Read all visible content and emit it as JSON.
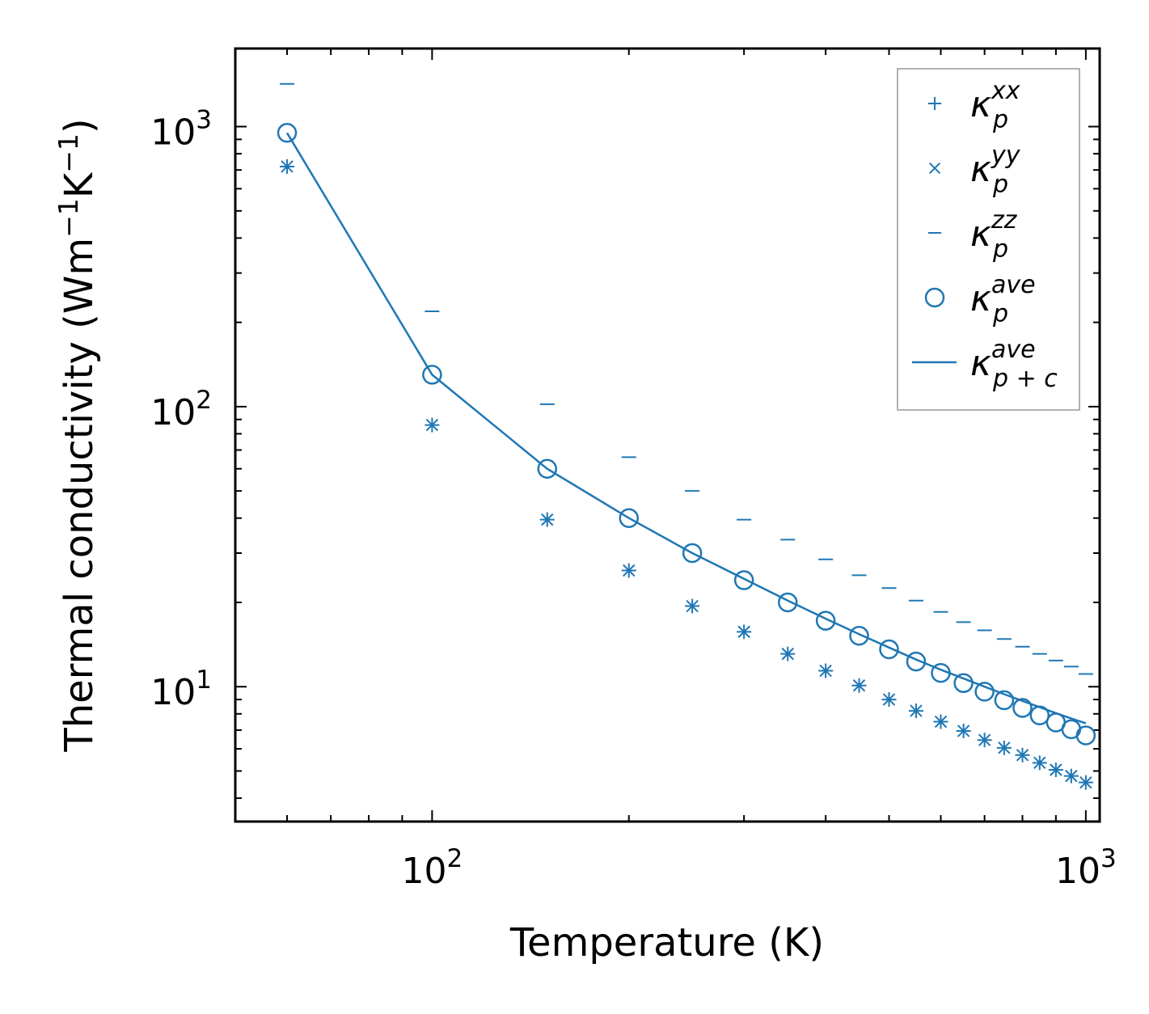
{
  "chart_data": {
    "type": "scatter",
    "title": "",
    "xlabel": "Temperature (K)",
    "ylabel": "Thermal conductivity (Wm",
    "ylabel_sup1": "−1",
    "ylabel_mid": "K",
    "ylabel_sup2": "−1",
    "ylabel_end": ")",
    "xscale": "log",
    "yscale": "log",
    "xlim": [
      50,
      1050
    ],
    "ylim": [
      3.3,
      1900
    ],
    "x_major_ticks": [
      {
        "value": 100,
        "base": "10",
        "exp": "2"
      },
      {
        "value": 1000,
        "base": "10",
        "exp": "3"
      }
    ],
    "y_major_ticks": [
      {
        "value": 10,
        "base": "10",
        "exp": "1"
      },
      {
        "value": 100,
        "base": "10",
        "exp": "2"
      },
      {
        "value": 1000,
        "base": "10",
        "exp": "3"
      }
    ],
    "legend_position": "top-right",
    "x": [
      60,
      100,
      150,
      200,
      250,
      300,
      350,
      400,
      450,
      500,
      550,
      600,
      650,
      700,
      750,
      800,
      850,
      900,
      950,
      1000
    ],
    "series": [
      {
        "name": "kxx",
        "symbol": "κ",
        "sub": "p",
        "sup": "xx",
        "marker": "plus",
        "values": [
          720,
          86,
          39.5,
          26.0,
          19.4,
          15.7,
          13.1,
          11.4,
          10.1,
          9.0,
          8.2,
          7.5,
          6.95,
          6.45,
          6.05,
          5.7,
          5.35,
          5.05,
          4.8,
          4.55
        ]
      },
      {
        "name": "kyy",
        "symbol": "κ",
        "sub": "p",
        "sup": "yy",
        "marker": "x",
        "values": [
          720,
          86,
          39.5,
          26.0,
          19.4,
          15.7,
          13.1,
          11.4,
          10.1,
          9.0,
          8.2,
          7.5,
          6.95,
          6.45,
          6.05,
          5.7,
          5.35,
          5.05,
          4.8,
          4.55
        ]
      },
      {
        "name": "kzz",
        "symbol": "κ",
        "sub": "p",
        "sup": "zz",
        "marker": "hline",
        "values": [
          1420,
          219,
          102,
          66,
          50,
          39.5,
          33.5,
          28.5,
          25.0,
          22.5,
          20.3,
          18.5,
          17.0,
          15.9,
          14.8,
          13.9,
          13.1,
          12.4,
          11.8,
          11.1
        ]
      },
      {
        "name": "kave",
        "symbol": "κ",
        "sub": "p",
        "sup": "ave",
        "marker": "circle",
        "values": [
          950,
          130,
          60,
          40,
          30,
          24.0,
          20.0,
          17.2,
          15.2,
          13.6,
          12.3,
          11.2,
          10.3,
          9.6,
          8.95,
          8.4,
          7.9,
          7.45,
          7.05,
          6.7
        ]
      },
      {
        "name": "kave_pc",
        "symbol": "κ",
        "sub": "p + c",
        "sup": "ave",
        "marker": "line",
        "values": [
          950,
          130,
          60,
          40,
          30,
          24.3,
          20.3,
          17.5,
          15.4,
          13.8,
          12.5,
          11.5,
          10.7,
          10.0,
          9.4,
          8.9,
          8.45,
          8.05,
          7.7,
          7.4
        ]
      }
    ],
    "colors": {
      "series": "#1f77b4",
      "axis": "#000000",
      "legend_border": "#999999"
    }
  }
}
